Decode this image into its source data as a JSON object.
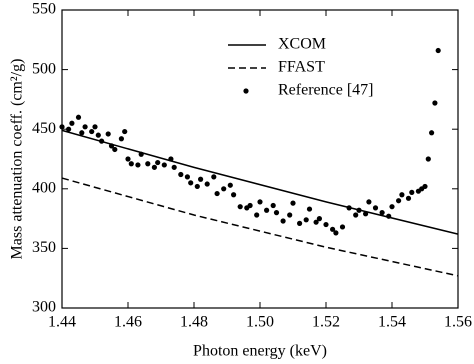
{
  "chart_data": {
    "type": "line",
    "xlabel": "Photon energy (keV)",
    "ylabel": "Mass attenuation coeff. (cm²/g)",
    "xlim": [
      1.44,
      1.56
    ],
    "xticks": [
      1.44,
      1.46,
      1.48,
      {
        "value": 1.5,
        "label": "1.50"
      },
      1.52,
      1.54,
      1.56
    ],
    "ylim": [
      300,
      550
    ],
    "yticks": [
      300,
      350,
      400,
      450,
      500,
      550
    ],
    "legend": "upper center",
    "series": [
      {
        "name": "XCOM",
        "color": "#000000",
        "style": "solid",
        "x": [
          1.44,
          1.48,
          1.52,
          1.56
        ],
        "values": [
          449,
          418,
          389,
          362
        ]
      },
      {
        "name": "FFAST",
        "color": "#000000",
        "style": "dashed",
        "x": [
          1.44,
          1.48,
          1.52,
          1.56
        ],
        "values": [
          409,
          378,
          351,
          327
        ]
      },
      {
        "name": "Reference [47]",
        "color": "#000000",
        "style": "markers",
        "x": [
          1.44,
          1.442,
          1.443,
          1.445,
          1.446,
          1.447,
          1.449,
          1.45,
          1.451,
          1.452,
          1.454,
          1.455,
          1.456,
          1.458,
          1.459,
          1.46,
          1.461,
          1.463,
          1.464,
          1.466,
          1.468,
          1.469,
          1.471,
          1.473,
          1.474,
          1.476,
          1.478,
          1.479,
          1.481,
          1.482,
          1.484,
          1.486,
          1.487,
          1.489,
          1.491,
          1.492,
          1.494,
          1.496,
          1.497,
          1.499,
          1.5,
          1.502,
          1.504,
          1.505,
          1.507,
          1.509,
          1.51,
          1.512,
          1.514,
          1.515,
          1.517,
          1.518,
          1.52,
          1.522,
          1.523,
          1.525,
          1.527,
          1.529,
          1.53,
          1.532,
          1.533,
          1.535,
          1.537,
          1.539,
          1.54,
          1.542,
          1.543,
          1.545,
          1.546,
          1.548,
          1.549,
          1.55,
          1.551,
          1.552,
          1.553,
          1.554
        ],
        "values": [
          452,
          450,
          455,
          460,
          447,
          452,
          448,
          452,
          445,
          440,
          446,
          436,
          433,
          442,
          448,
          425,
          421,
          420,
          429,
          421,
          418,
          422,
          420,
          425,
          418,
          412,
          410,
          405,
          402,
          408,
          404,
          410,
          396,
          400,
          403,
          395,
          385,
          384,
          386,
          378,
          389,
          382,
          386,
          380,
          373,
          378,
          388,
          371,
          374,
          383,
          372,
          375,
          370,
          366,
          363,
          368,
          384,
          378,
          382,
          379,
          389,
          384,
          380,
          377,
          385,
          390,
          395,
          392,
          397,
          398,
          400,
          402,
          425,
          447,
          472,
          516
        ]
      }
    ]
  }
}
